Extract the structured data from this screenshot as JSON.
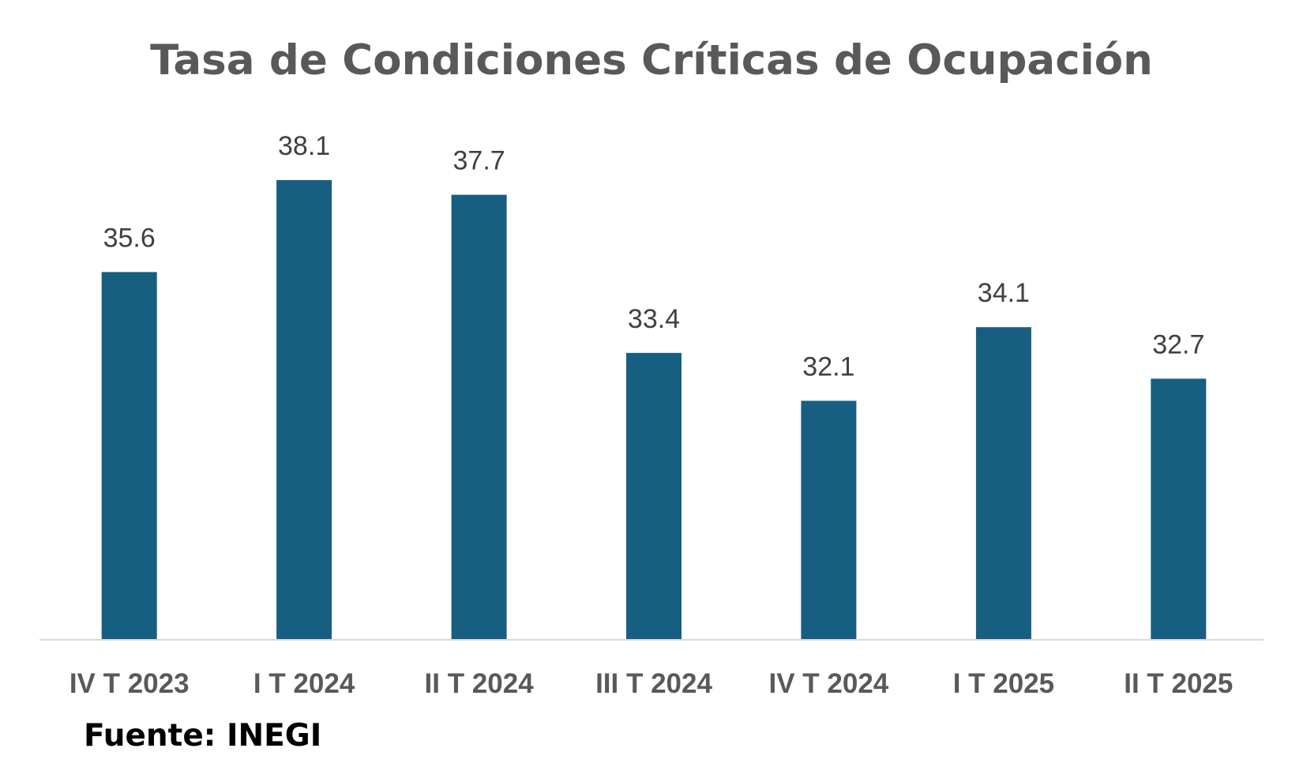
{
  "chart_data": {
    "type": "bar",
    "title": "Tasa de Condiciones Críticas de Ocupación",
    "categories": [
      "IV T 2023",
      "I T 2024",
      "II T 2024",
      "III T 2024",
      "IV T 2024",
      "I T 2025",
      "II T 2025"
    ],
    "values": [
      35.6,
      38.1,
      37.7,
      33.4,
      32.1,
      34.1,
      32.7
    ],
    "value_labels": [
      "35.6",
      "38.1",
      "37.7",
      "33.4",
      "32.1",
      "34.1",
      "32.7"
    ],
    "xlabel": "",
    "ylabel": "",
    "ylim": [
      25.6,
      40
    ],
    "grid": false,
    "legend": "none",
    "y_axis_visible": false,
    "data_labels": true
  },
  "source_note": "Fuente: INEGI",
  "colors": {
    "bar": "#175F81",
    "axis": "#D9D9D9",
    "title": "#595959",
    "data_label": "#404040",
    "tick_label": "#595959",
    "source": "#000000"
  }
}
